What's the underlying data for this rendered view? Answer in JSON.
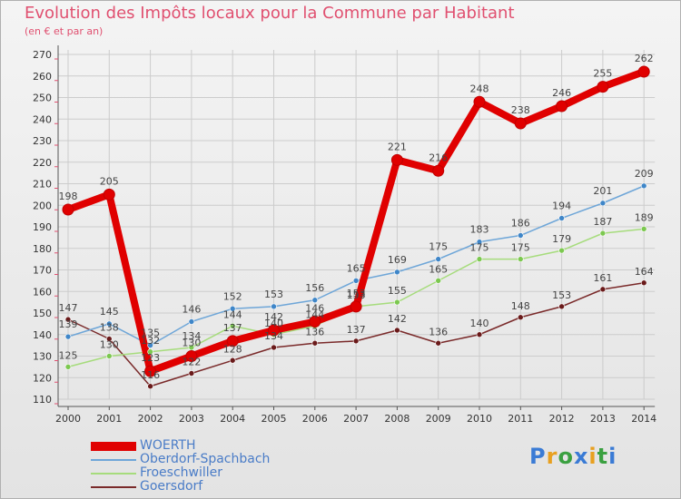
{
  "header": {
    "title": "Evolution des Impôts locaux pour la Commune par Habitant",
    "subtitle": "(en € et par an)"
  },
  "logo": {
    "text": "Proxiti",
    "letter_colors": [
      "#3a7bd5",
      "#e8a020",
      "#3aa040",
      "#3a7bd5",
      "#e8a020",
      "#3aa040",
      "#3a7bd5"
    ]
  },
  "colors": {
    "title": "#e05070",
    "legend_text": "#4a7cc7",
    "axis": "#555555",
    "grid": "#cccccc"
  },
  "chart_data": {
    "type": "line",
    "title": "Evolution des Impôts locaux pour la Commune par Habitant",
    "subtitle": "(en € et par an)",
    "xlabel": "",
    "ylabel": "",
    "ylim": [
      110,
      270
    ],
    "yticks": [
      110,
      120,
      130,
      140,
      150,
      160,
      170,
      180,
      190,
      200,
      210,
      220,
      230,
      240,
      250,
      260,
      270
    ],
    "grid": true,
    "legend_position": "bottom-left",
    "categories": [
      "2000",
      "2001",
      "2002",
      "2003",
      "2004",
      "2005",
      "2006",
      "2007",
      "2008",
      "2009",
      "2010",
      "2011",
      "2012",
      "2013",
      "2014"
    ],
    "series": [
      {
        "name": "WOERTH",
        "color": "#e00000",
        "marker_color": "#e00000",
        "values": [
          198,
          205,
          123,
          130,
          137,
          142,
          146,
          153,
          221,
          216,
          248,
          238,
          246,
          255,
          262
        ]
      },
      {
        "name": "Oberdorf-Spachbach",
        "color": "#6ea6d8",
        "marker_color": "#3f86c8",
        "values": [
          139,
          145,
          135,
          146,
          152,
          153,
          156,
          165,
          169,
          175,
          183,
          186,
          194,
          201,
          209
        ]
      },
      {
        "name": "Froeschwiller",
        "color": "#a6dc7c",
        "marker_color": "#7cc850",
        "values": [
          125,
          130,
          132,
          134,
          144,
          140,
          144,
          153,
          155,
          165,
          175,
          175,
          179,
          187,
          189
        ]
      },
      {
        "name": "Goersdorf",
        "color": "#7a2a2a",
        "marker_color": "#6a1a1a",
        "values": [
          147,
          138,
          116,
          122,
          128,
          134,
          136,
          137,
          142,
          136,
          140,
          148,
          153,
          161,
          164
        ]
      }
    ]
  }
}
